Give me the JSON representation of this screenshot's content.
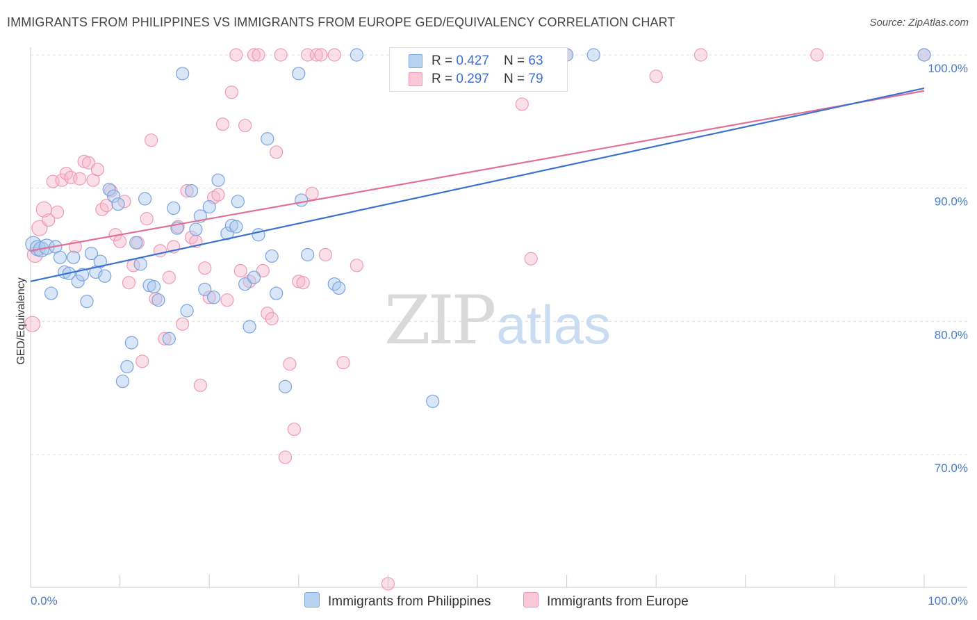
{
  "header": {
    "title": "IMMIGRANTS FROM PHILIPPINES VS IMMIGRANTS FROM EUROPE GED/EQUIVALENCY CORRELATION CHART",
    "source": "Source: ZipAtlas.com"
  },
  "watermark": {
    "zip": "ZIP",
    "atlas": "atlas"
  },
  "legend": {
    "rows": [
      {
        "r_label": "R = ",
        "r_value": "0.427",
        "n_label": "N = ",
        "n_value": "63"
      },
      {
        "r_label": "R = ",
        "r_value": "0.297",
        "n_label": "N = ",
        "n_value": "79"
      }
    ]
  },
  "bottom_legend": {
    "philippines": "Immigrants from Philippines",
    "europe": "Immigrants from Europe"
  },
  "chart_data": {
    "type": "scatter",
    "title": "IMMIGRANTS FROM PHILIPPINES VS IMMIGRANTS FROM EUROPE GED/EQUIVALENCY CORRELATION CHART",
    "ylabel": "GED/Equivalency",
    "xlabel": "",
    "xlim": [
      0,
      100
    ],
    "ylim": [
      60,
      100
    ],
    "x_tick_labels": [
      "0.0%",
      "100.0%"
    ],
    "y_ticks": [
      70,
      80,
      90,
      100
    ],
    "y_tick_labels": [
      "70.0%",
      "80.0%",
      "90.0%",
      "100.0%"
    ],
    "grid": "horizontal dashed",
    "legend_placement": "top-center",
    "colors": {
      "philippines": "#a9c8ee",
      "philippines_line": "#3a72cc",
      "europe": "#f6b7cb",
      "europe_line": "#e07096"
    },
    "series": [
      {
        "name": "Immigrants from Philippines",
        "R": 0.427,
        "N": 63,
        "trend": [
          [
            0,
            83.0
          ],
          [
            100,
            97.5
          ]
        ],
        "points": [
          [
            0.3,
            85.8
          ],
          [
            0.8,
            85.5
          ],
          [
            1.2,
            85.4
          ],
          [
            1.8,
            85.6
          ],
          [
            2.3,
            82.1
          ],
          [
            2.8,
            85.6
          ],
          [
            3.3,
            84.8
          ],
          [
            3.8,
            83.7
          ],
          [
            4.3,
            83.6
          ],
          [
            4.8,
            84.8
          ],
          [
            5.3,
            83.0
          ],
          [
            5.8,
            83.5
          ],
          [
            6.3,
            81.5
          ],
          [
            6.8,
            85.1
          ],
          [
            7.3,
            83.7
          ],
          [
            7.8,
            84.5
          ],
          [
            8.3,
            83.4
          ],
          [
            8.8,
            89.9
          ],
          [
            9.3,
            89.4
          ],
          [
            9.8,
            88.8
          ],
          [
            10.3,
            75.5
          ],
          [
            10.8,
            76.6
          ],
          [
            11.3,
            78.4
          ],
          [
            11.8,
            85.9
          ],
          [
            12.3,
            84.3
          ],
          [
            12.8,
            89.2
          ],
          [
            13.3,
            82.7
          ],
          [
            13.8,
            82.6
          ],
          [
            14.3,
            81.6
          ],
          [
            15.5,
            78.7
          ],
          [
            16.0,
            88.5
          ],
          [
            16.4,
            87.0
          ],
          [
            17.0,
            98.6
          ],
          [
            17.5,
            80.8
          ],
          [
            18.0,
            89.8
          ],
          [
            18.5,
            86.9
          ],
          [
            19.0,
            87.9
          ],
          [
            19.5,
            82.4
          ],
          [
            20.0,
            88.6
          ],
          [
            20.5,
            81.8
          ],
          [
            21.0,
            90.6
          ],
          [
            22.0,
            86.6
          ],
          [
            22.5,
            87.2
          ],
          [
            23.0,
            87.1
          ],
          [
            23.2,
            89.0
          ],
          [
            24.0,
            82.8
          ],
          [
            24.5,
            79.6
          ],
          [
            25.0,
            83.3
          ],
          [
            25.5,
            86.5
          ],
          [
            26.5,
            93.7
          ],
          [
            27.0,
            84.9
          ],
          [
            27.5,
            82.1
          ],
          [
            28.5,
            75.1
          ],
          [
            30.0,
            98.6
          ],
          [
            30.3,
            89.1
          ],
          [
            31.0,
            85.0
          ],
          [
            34.0,
            82.8
          ],
          [
            34.5,
            82.5
          ],
          [
            36.5,
            100.0
          ],
          [
            45.0,
            74.0
          ],
          [
            60.0,
            100.0
          ],
          [
            63.0,
            100.0
          ],
          [
            100.0,
            100.0
          ]
        ]
      },
      {
        "name": "Immigrants from Europe",
        "R": 0.297,
        "N": 79,
        "trend": [
          [
            0,
            85.3
          ],
          [
            100,
            97.3
          ]
        ],
        "points": [
          [
            0.2,
            79.8
          ],
          [
            0.5,
            85.0
          ],
          [
            1.0,
            87.0
          ],
          [
            1.5,
            88.4
          ],
          [
            2.0,
            87.6
          ],
          [
            2.5,
            90.5
          ],
          [
            3.0,
            88.2
          ],
          [
            3.5,
            90.6
          ],
          [
            4.0,
            91.1
          ],
          [
            4.5,
            90.8
          ],
          [
            5.0,
            85.6
          ],
          [
            5.5,
            90.7
          ],
          [
            6.0,
            92.0
          ],
          [
            6.5,
            91.9
          ],
          [
            7.0,
            90.6
          ],
          [
            7.5,
            91.4
          ],
          [
            8.0,
            88.4
          ],
          [
            8.5,
            88.7
          ],
          [
            9.0,
            89.8
          ],
          [
            9.5,
            86.5
          ],
          [
            10.0,
            86.0
          ],
          [
            10.5,
            89.0
          ],
          [
            11.0,
            82.9
          ],
          [
            11.5,
            84.2
          ],
          [
            12.0,
            85.9
          ],
          [
            12.5,
            77.0
          ],
          [
            13.0,
            87.7
          ],
          [
            13.5,
            93.6
          ],
          [
            14.0,
            81.7
          ],
          [
            14.5,
            85.3
          ],
          [
            15.0,
            78.7
          ],
          [
            15.5,
            83.3
          ],
          [
            16.0,
            85.6
          ],
          [
            16.5,
            87.1
          ],
          [
            17.0,
            79.8
          ],
          [
            17.5,
            89.8
          ],
          [
            18.0,
            86.3
          ],
          [
            18.5,
            86.0
          ],
          [
            19.0,
            75.2
          ],
          [
            19.5,
            84.0
          ],
          [
            20.0,
            81.8
          ],
          [
            20.5,
            89.3
          ],
          [
            21.0,
            89.5
          ],
          [
            21.5,
            94.8
          ],
          [
            22.0,
            81.6
          ],
          [
            22.5,
            97.2
          ],
          [
            23.0,
            100.0
          ],
          [
            23.5,
            83.8
          ],
          [
            24.0,
            94.7
          ],
          [
            24.5,
            83.0
          ],
          [
            25.0,
            100.0
          ],
          [
            25.5,
            100.0
          ],
          [
            26.0,
            83.8
          ],
          [
            26.5,
            80.6
          ],
          [
            27.0,
            80.2
          ],
          [
            27.5,
            92.7
          ],
          [
            28.0,
            100.0
          ],
          [
            28.5,
            69.8
          ],
          [
            29.0,
            76.8
          ],
          [
            29.5,
            71.9
          ],
          [
            30.0,
            83.0
          ],
          [
            30.5,
            82.9
          ],
          [
            31.0,
            100.0
          ],
          [
            31.5,
            89.6
          ],
          [
            32.0,
            100.0
          ],
          [
            32.5,
            100.0
          ],
          [
            33.0,
            85.0
          ],
          [
            34.0,
            100.0
          ],
          [
            35.0,
            76.9
          ],
          [
            36.5,
            84.2
          ],
          [
            40.0,
            60.3
          ],
          [
            42.0,
            100.0
          ],
          [
            55.0,
            96.3
          ],
          [
            56.0,
            84.7
          ],
          [
            60.0,
            100.0
          ],
          [
            70.0,
            98.4
          ],
          [
            75.0,
            100.0
          ],
          [
            88.0,
            100.0
          ],
          [
            100.0,
            100.0
          ]
        ]
      }
    ]
  }
}
